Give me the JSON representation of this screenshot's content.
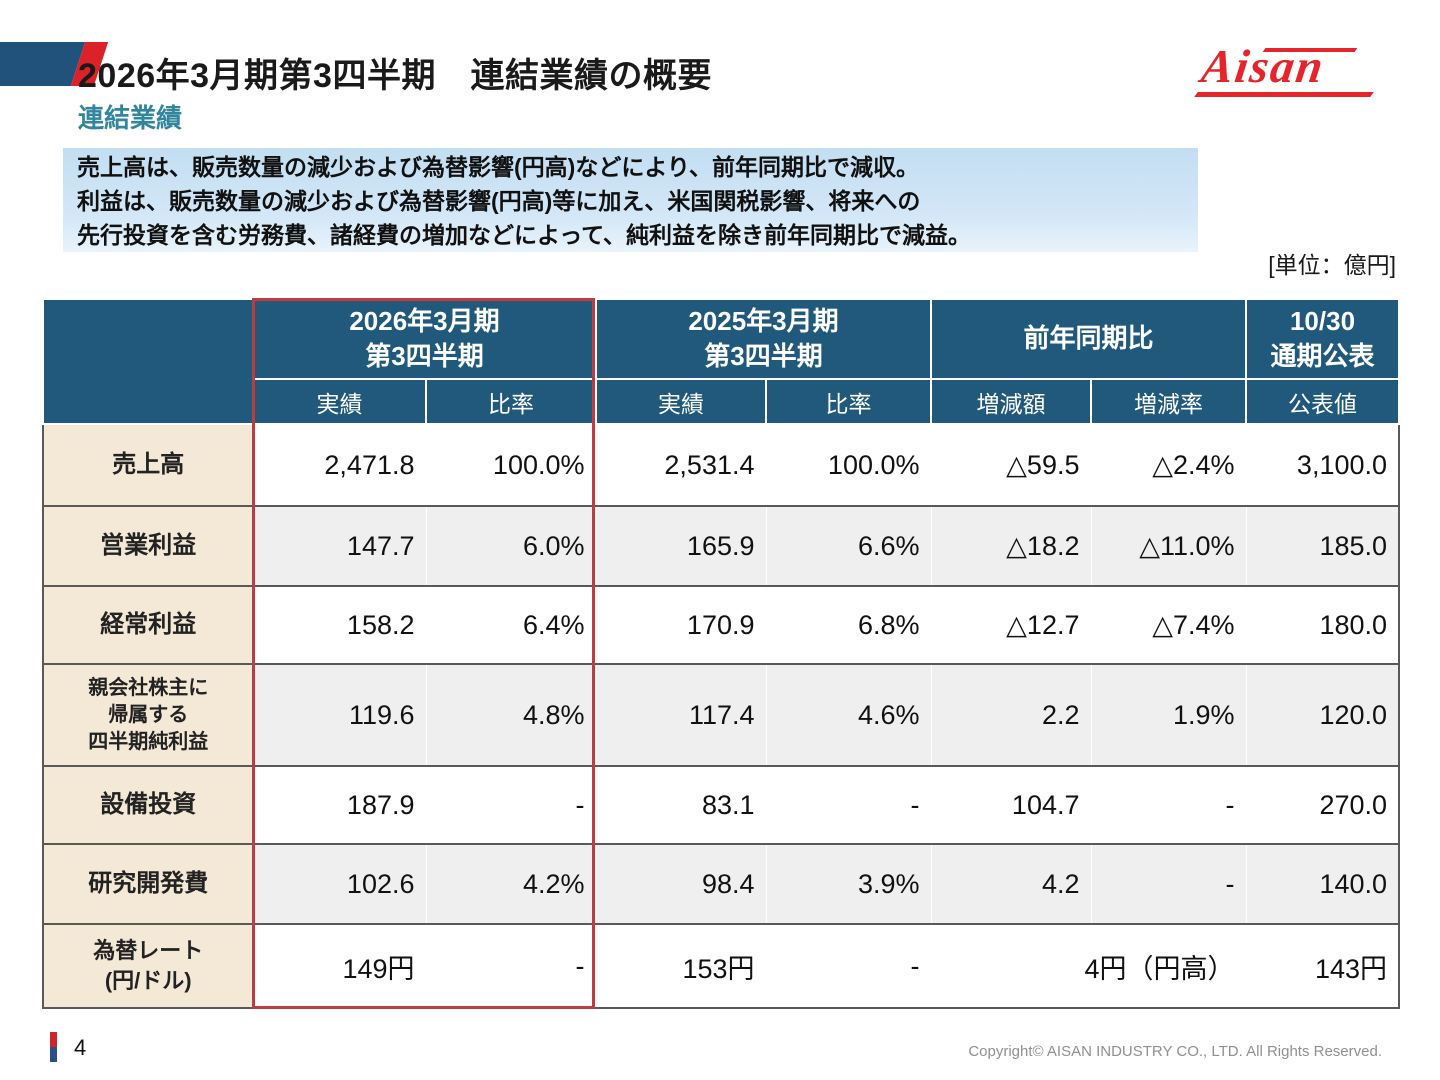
{
  "header": {
    "title": "2026年3月期第3四半期　連結業績の概要",
    "subtitle": "連結業績",
    "logo_text": "Aisan"
  },
  "summary": {
    "lines": [
      "売上高は、販売数量の減少および為替影響(円高)などにより、前年同期比で減収。",
      "利益は、販売数量の減少および為替影響(円高)等に加え、米国関税影響、将来への",
      "先行投資を含む労務費、諸経費の増加などによって、純利益を除き前年同期比で減益。"
    ]
  },
  "unit_label": "[単位：億円]",
  "table": {
    "col_groups": [
      {
        "label": "2026年3月期\n第3四半期",
        "subs": [
          "実績",
          "比率"
        ],
        "highlighted": true
      },
      {
        "label": "2025年3月期\n第3四半期",
        "subs": [
          "実績",
          "比率"
        ],
        "highlighted": false
      },
      {
        "label": "前年同期比",
        "subs": [
          "増減額",
          "増減率"
        ],
        "highlighted": false
      },
      {
        "label": "10/30\n通期公表",
        "subs": [
          "公表値"
        ],
        "highlighted": false
      }
    ],
    "rows": [
      {
        "label": "売上高",
        "cells": [
          "2,471.8",
          "100.0%",
          "2,531.4",
          "100.0%",
          "△59.5",
          "△2.4%",
          "3,100.0"
        ]
      },
      {
        "label": "営業利益",
        "cells": [
          "147.7",
          "6.0%",
          "165.9",
          "6.6%",
          "△18.2",
          "△11.0%",
          "185.0"
        ]
      },
      {
        "label": "経常利益",
        "cells": [
          "158.2",
          "6.4%",
          "170.9",
          "6.8%",
          "△12.7",
          "△7.4%",
          "180.0"
        ]
      },
      {
        "label": "親会社株主に\n帰属する\n四半期純利益",
        "cells": [
          "119.6",
          "4.8%",
          "117.4",
          "4.6%",
          "2.2",
          "1.9%",
          "120.0"
        ]
      },
      {
        "label": "設備投資",
        "cells": [
          "187.9",
          "-",
          "83.1",
          "-",
          "104.7",
          "-",
          "270.0"
        ]
      },
      {
        "label": "研究開発費",
        "cells": [
          "102.6",
          "4.2%",
          "98.4",
          "3.9%",
          "4.2",
          "-",
          "140.0"
        ]
      },
      {
        "label": "為替レート\n(円/ドル)",
        "cells": [
          "149円",
          "-",
          "153円",
          "-",
          "4円（円高）",
          "143円"
        ],
        "spans": {
          "4": 2
        }
      }
    ]
  },
  "footer": {
    "page_number": "4",
    "copyright": "Copyright© AISAN INDUSTRY CO., LTD. All Rights Reserved."
  },
  "colors": {
    "header_blue": "#20597B",
    "label_beige": "#F4E8D6",
    "row_gray": "#EFEFEF",
    "highlight_red": "#C03A42",
    "subtitle_teal": "#31859C",
    "logo_red": "#E6252B",
    "summary_blue": "#C3DEF2"
  }
}
